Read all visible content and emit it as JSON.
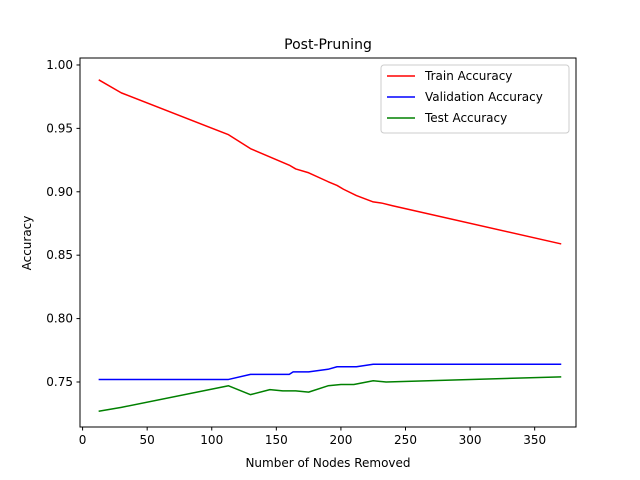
{
  "chart_data": {
    "type": "line",
    "title": "Post-Pruning",
    "xlabel": "Number of Nodes Removed",
    "ylabel": "Accuracy",
    "xlim": [
      -2,
      382
    ],
    "ylim": [
      0.7145,
      1.0055
    ],
    "xticks": [
      0,
      50,
      100,
      150,
      200,
      250,
      300,
      350
    ],
    "yticks": [
      0.75,
      0.8,
      0.85,
      0.9,
      0.95,
      1.0
    ],
    "ytick_labels": [
      "0.75",
      "0.80",
      "0.85",
      "0.90",
      "0.95",
      "1.00"
    ],
    "grid": false,
    "legend_position": "top-right",
    "series": [
      {
        "name": "Train Accuracy",
        "color": "#ff0000",
        "x": [
          13,
          30,
          113,
          130,
          160,
          165,
          175,
          190,
          197,
          202,
          212,
          225,
          232,
          240,
          370
        ],
        "y": [
          0.988,
          0.978,
          0.945,
          0.934,
          0.921,
          0.918,
          0.915,
          0.908,
          0.905,
          0.902,
          0.897,
          0.892,
          0.891,
          0.889,
          0.859
        ]
      },
      {
        "name": "Validation Accuracy",
        "color": "#0000ff",
        "x": [
          13,
          113,
          130,
          160,
          163,
          175,
          190,
          197,
          212,
          225,
          370
        ],
        "y": [
          0.752,
          0.752,
          0.756,
          0.756,
          0.758,
          0.758,
          0.76,
          0.762,
          0.762,
          0.764,
          0.764
        ]
      },
      {
        "name": "Test Accuracy",
        "color": "#008000",
        "x": [
          13,
          30,
          113,
          130,
          145,
          155,
          165,
          175,
          190,
          200,
          210,
          225,
          235,
          370
        ],
        "y": [
          0.727,
          0.73,
          0.747,
          0.74,
          0.744,
          0.743,
          0.743,
          0.742,
          0.747,
          0.748,
          0.748,
          0.751,
          0.75,
          0.754
        ]
      }
    ]
  }
}
